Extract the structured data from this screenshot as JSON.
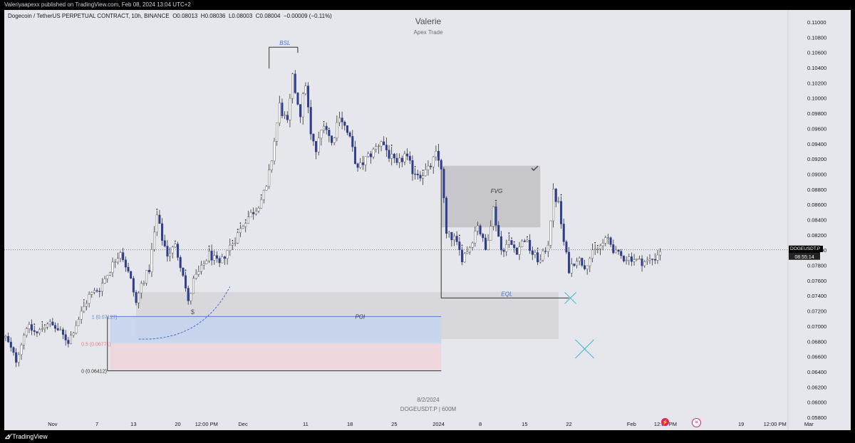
{
  "publish_line": "Valeriyaapexx published on TradingView.com, Feb 08, 2024 13:04 UTC+2",
  "symbol_line": {
    "name": "Dogecoin / TetherUS PERPETUAL CONTRACT, 10h, BINANCE",
    "o": "O0.08013",
    "h": "H0.08036",
    "l": "L0.08003",
    "c": "C0.08004",
    "chg": "−0.00009 (−0.11%)"
  },
  "watermark": {
    "title": "Valerie",
    "subtitle": "Apex Trade"
  },
  "bottom_watermark": {
    "date": "8/2/2024",
    "symbol": "DOGEUSDT.P | 600M"
  },
  "last_price": {
    "symbol": "DOGEUSDT.P",
    "price": "0.08004",
    "countdown": "08:55:14"
  },
  "footer": {
    "brand": "TradingView"
  },
  "annotations": {
    "bsl": "BSL",
    "fvg": "FVG",
    "eql": "EQL",
    "poi": "POI",
    "dollar": "$",
    "fib_1": "1 (0.07127)",
    "fib_05": "0.5 (0.06771)",
    "fib_0": "0 (0.06412)"
  },
  "icons": {
    "flash_color": "#e91e63",
    "flag_color": "#e91e63"
  },
  "colors": {
    "up_candle": "#ffffff",
    "down_candle": "#2b3d8f",
    "wick": "#333333",
    "poi_blue_zone": "#c5d3ef",
    "poi_pink_zone": "#efd5db",
    "gray_zone": "#d3d4d9",
    "fvg_zone": "#bfc0c5",
    "blue_text": "#3a6fd8",
    "cross": "#2ab6c9"
  },
  "chart_data": {
    "type": "candlestick",
    "interval": "10h",
    "y_axis": {
      "min": 0.058,
      "max": 0.11,
      "step": 0.002,
      "labels": [
        "0.11000",
        "0.10800",
        "0.10600",
        "0.10400",
        "0.10200",
        "0.10000",
        "0.09800",
        "0.09600",
        "0.09400",
        "0.09200",
        "0.09000",
        "0.08800",
        "0.08600",
        "0.08400",
        "0.08200",
        "0.08000",
        "0.07800",
        "0.07600",
        "0.07400",
        "0.07200",
        "0.07000",
        "0.06800",
        "0.06600",
        "0.06400",
        "0.06200",
        "0.06000",
        "0.05800"
      ]
    },
    "x_axis": {
      "labels": [
        {
          "text": "Nov",
          "i": 18
        },
        {
          "text": "7",
          "i": 35
        },
        {
          "text": "13",
          "i": 49
        },
        {
          "text": "20",
          "i": 66
        },
        {
          "text": "12:00 PM",
          "i": 77
        },
        {
          "text": "Dec",
          "i": 91
        },
        {
          "text": "11",
          "i": 115
        },
        {
          "text": "18",
          "i": 132
        },
        {
          "text": "25",
          "i": 149
        },
        {
          "text": "2024",
          "i": 166
        },
        {
          "text": "8",
          "i": 182
        },
        {
          "text": "15",
          "i": 199
        },
        {
          "text": "22",
          "i": 216
        },
        {
          "text": "Feb",
          "i": 240
        },
        {
          "text": "12:00 PM",
          "i": 253
        },
        {
          "text": "12",
          "i": 265
        },
        {
          "text": "19",
          "i": 282
        },
        {
          "text": "12:00 PM",
          "i": 295
        },
        {
          "text": "Mar",
          "i": 308
        }
      ]
    },
    "anchors": [
      [
        0,
        0.0685
      ],
      [
        4,
        0.0655
      ],
      [
        8,
        0.07
      ],
      [
        12,
        0.069
      ],
      [
        16,
        0.0705
      ],
      [
        20,
        0.0695
      ],
      [
        24,
        0.068
      ],
      [
        28,
        0.071
      ],
      [
        32,
        0.074
      ],
      [
        36,
        0.075
      ],
      [
        40,
        0.0775
      ],
      [
        44,
        0.08
      ],
      [
        48,
        0.076
      ],
      [
        50,
        0.073
      ],
      [
        52,
        0.0755
      ],
      [
        55,
        0.0775
      ],
      [
        58,
        0.0845
      ],
      [
        60,
        0.0815
      ],
      [
        62,
        0.0795
      ],
      [
        65,
        0.0805
      ],
      [
        68,
        0.077
      ],
      [
        70,
        0.073
      ],
      [
        72,
        0.076
      ],
      [
        75,
        0.0775
      ],
      [
        78,
        0.0795
      ],
      [
        82,
        0.078
      ],
      [
        85,
        0.08
      ],
      [
        88,
        0.0815
      ],
      [
        92,
        0.084
      ],
      [
        96,
        0.0855
      ],
      [
        100,
        0.088
      ],
      [
        102,
        0.092
      ],
      [
        105,
        0.099
      ],
      [
        108,
        0.0965
      ],
      [
        110,
        0.1025
      ],
      [
        113,
        0.098
      ],
      [
        115,
        0.102
      ],
      [
        117,
        0.095
      ],
      [
        119,
        0.093
      ],
      [
        122,
        0.097
      ],
      [
        125,
        0.094
      ],
      [
        128,
        0.098
      ],
      [
        132,
        0.0945
      ],
      [
        135,
        0.0905
      ],
      [
        138,
        0.092
      ],
      [
        141,
        0.093
      ],
      [
        144,
        0.0945
      ],
      [
        147,
        0.0925
      ],
      [
        150,
        0.091
      ],
      [
        153,
        0.0925
      ],
      [
        156,
        0.0905
      ],
      [
        159,
        0.09
      ],
      [
        162,
        0.0905
      ],
      [
        165,
        0.0925
      ],
      [
        167,
        0.091
      ],
      [
        169,
        0.082
      ],
      [
        172,
        0.0815
      ],
      [
        175,
        0.079
      ],
      [
        178,
        0.0805
      ],
      [
        181,
        0.0835
      ],
      [
        184,
        0.08
      ],
      [
        187,
        0.0855
      ],
      [
        190,
        0.08
      ],
      [
        193,
        0.081
      ],
      [
        196,
        0.08
      ],
      [
        199,
        0.0815
      ],
      [
        202,
        0.0795
      ],
      [
        205,
        0.0785
      ],
      [
        208,
        0.081
      ],
      [
        210,
        0.0875
      ],
      [
        212,
        0.086
      ],
      [
        214,
        0.081
      ],
      [
        216,
        0.0775
      ],
      [
        219,
        0.079
      ],
      [
        222,
        0.078
      ],
      [
        225,
        0.0795
      ],
      [
        228,
        0.0805
      ],
      [
        231,
        0.0815
      ],
      [
        234,
        0.0795
      ],
      [
        237,
        0.079
      ],
      [
        240,
        0.079
      ],
      [
        243,
        0.0785
      ],
      [
        246,
        0.0785
      ],
      [
        249,
        0.079
      ],
      [
        251,
        0.08
      ]
    ],
    "num_candles": 252,
    "zones": [
      {
        "name": "poi-gray",
        "x_start_i": 50,
        "x_end_i": 212,
        "y_top": 0.0745,
        "y_bottom": 0.0683
      },
      {
        "name": "poi-blue",
        "x_start_i": 40,
        "x_end_i": 167,
        "y_top": 0.07127,
        "y_bottom": 0.06771
      },
      {
        "name": "poi-pink",
        "x_start_i": 40,
        "x_end_i": 167,
        "y_top": 0.06771,
        "y_bottom": 0.06412
      },
      {
        "name": "fvg",
        "x_start_i": 167,
        "x_end_i": 205,
        "y_top": 0.0911,
        "y_bottom": 0.083
      }
    ],
    "levels": [
      {
        "name": "bsl",
        "price": 0.1067,
        "x_start_i": 101,
        "x_end_i": 112
      },
      {
        "name": "eql",
        "price": 0.0737,
        "x_start_i": 167,
        "x_end_i": 216
      },
      {
        "name": "fib-0",
        "price": 0.06412,
        "x_start_i": 39,
        "x_end_i": 167
      },
      {
        "name": "fib-1",
        "price": 0.07127,
        "x_start_i": 40,
        "x_end_i": 167
      }
    ],
    "last_price": 0.08004
  }
}
